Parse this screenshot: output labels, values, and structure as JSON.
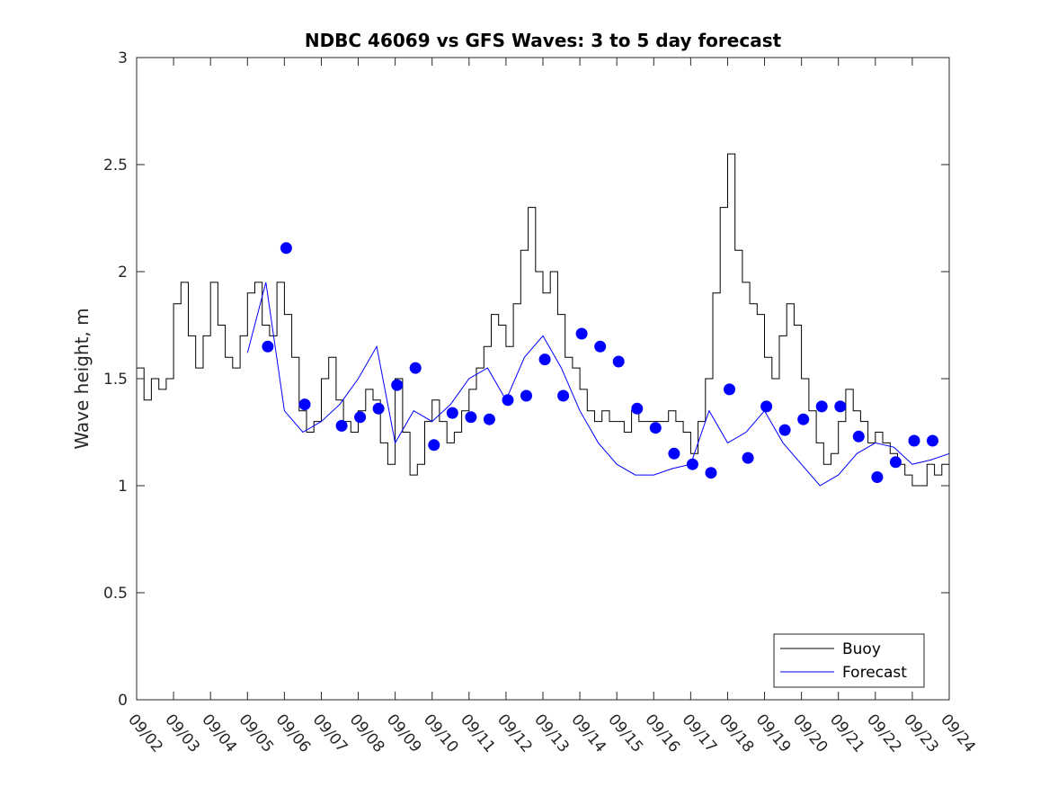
{
  "chart_data": {
    "type": "line",
    "title": "NDBC 46069 vs GFS Waves: 3 to 5 day forecast",
    "xlabel": "",
    "ylabel": "Wave height, m",
    "xlim": [
      0,
      22
    ],
    "ylim": [
      0,
      3
    ],
    "grid": false,
    "legend_position": "bottom-right",
    "x_tick_labels": [
      "09/02",
      "09/03",
      "09/04",
      "09/05",
      "09/06",
      "09/07",
      "09/08",
      "09/09",
      "09/10",
      "09/11",
      "09/12",
      "09/13",
      "09/14",
      "09/15",
      "09/16",
      "09/17",
      "09/18",
      "09/19",
      "09/20",
      "09/21",
      "09/22",
      "09/23",
      "09/24"
    ],
    "y_ticks": [
      0,
      0.5,
      1,
      1.5,
      2,
      2.5,
      3
    ],
    "y_tick_labels": [
      "0",
      "0.5",
      "1",
      "1.5",
      "2",
      "2.5",
      "3"
    ],
    "legend": [
      "Buoy",
      "Forecast"
    ],
    "colors": {
      "buoy": "#000000",
      "forecast": "#0000ff",
      "axis": "#262626"
    },
    "series": [
      {
        "name": "Buoy",
        "x": [
          0.0,
          0.2,
          0.4,
          0.6,
          0.8,
          1.0,
          1.2,
          1.4,
          1.6,
          1.8,
          2.0,
          2.2,
          2.4,
          2.6,
          2.8,
          3.0,
          3.2,
          3.4,
          3.6,
          3.8,
          4.0,
          4.2,
          4.4,
          4.6,
          4.8,
          5.0,
          5.2,
          5.4,
          5.6,
          5.8,
          6.0,
          6.2,
          6.4,
          6.6,
          6.8,
          7.0,
          7.2,
          7.4,
          7.6,
          7.8,
          8.0,
          8.2,
          8.4,
          8.6,
          8.8,
          9.0,
          9.2,
          9.4,
          9.6,
          9.8,
          10.0,
          10.2,
          10.4,
          10.6,
          10.8,
          11.0,
          11.2,
          11.4,
          11.6,
          11.8,
          12.0,
          12.2,
          12.4,
          12.6,
          12.8,
          13.0,
          13.2,
          13.4,
          13.6,
          13.8,
          14.0,
          14.2,
          14.4,
          14.6,
          14.8,
          15.0,
          15.2,
          15.4,
          15.6,
          15.8,
          16.0,
          16.2,
          16.4,
          16.6,
          16.8,
          17.0,
          17.2,
          17.4,
          17.6,
          17.8,
          18.0,
          18.2,
          18.4,
          18.6,
          18.8,
          19.0,
          19.2,
          19.4,
          19.6,
          19.8,
          20.0,
          20.2,
          20.4,
          20.6,
          20.8,
          21.0,
          21.2,
          21.4,
          21.6,
          21.8,
          22.0
        ],
        "values": [
          1.55,
          1.4,
          1.5,
          1.45,
          1.5,
          1.85,
          1.95,
          1.7,
          1.55,
          1.7,
          1.95,
          1.75,
          1.6,
          1.55,
          1.7,
          1.9,
          1.95,
          1.75,
          1.7,
          1.95,
          1.8,
          1.6,
          1.35,
          1.25,
          1.3,
          1.5,
          1.6,
          1.4,
          1.3,
          1.25,
          1.35,
          1.45,
          1.4,
          1.2,
          1.1,
          1.5,
          1.25,
          1.05,
          1.1,
          1.3,
          1.4,
          1.3,
          1.2,
          1.25,
          1.35,
          1.45,
          1.55,
          1.65,
          1.8,
          1.75,
          1.65,
          1.85,
          2.1,
          2.3,
          2.0,
          1.9,
          2.0,
          1.8,
          1.6,
          1.55,
          1.45,
          1.35,
          1.3,
          1.35,
          1.3,
          1.3,
          1.25,
          1.35,
          1.3,
          1.3,
          1.3,
          1.3,
          1.35,
          1.3,
          1.25,
          1.15,
          1.3,
          1.5,
          1.9,
          2.3,
          2.55,
          2.1,
          1.95,
          1.85,
          1.8,
          1.6,
          1.5,
          1.7,
          1.85,
          1.75,
          1.5,
          1.35,
          1.2,
          1.1,
          1.15,
          1.3,
          1.45,
          1.35,
          1.3,
          1.2,
          1.25,
          1.2,
          1.15,
          1.1,
          1.05,
          1.0,
          1.0,
          1.1,
          1.05,
          1.1,
          1.15
        ]
      },
      {
        "name": "Forecast",
        "x": [
          3.0,
          3.5,
          4.0,
          4.5,
          5.0,
          5.5,
          6.0,
          6.5,
          7.0,
          7.5,
          8.0,
          8.5,
          9.0,
          9.5,
          10.0,
          10.5,
          11.0,
          11.5,
          12.0,
          12.5,
          13.0,
          13.5,
          14.0,
          14.5,
          15.0,
          15.5,
          16.0,
          16.5,
          17.0,
          17.5,
          18.0,
          18.5,
          19.0,
          19.5,
          20.0,
          20.5,
          21.0,
          21.5,
          22.0
        ],
        "values": [
          1.62,
          1.95,
          1.35,
          1.25,
          1.3,
          1.38,
          1.5,
          1.65,
          1.2,
          1.35,
          1.3,
          1.38,
          1.5,
          1.55,
          1.4,
          1.6,
          1.7,
          1.55,
          1.35,
          1.2,
          1.1,
          1.05,
          1.05,
          1.08,
          1.1,
          1.35,
          1.2,
          1.25,
          1.35,
          1.2,
          1.1,
          1.0,
          1.05,
          1.15,
          1.2,
          1.18,
          1.1,
          1.12,
          1.15
        ]
      },
      {
        "name": "Forecast markers",
        "x": [
          3.55,
          4.05,
          4.55,
          5.55,
          6.05,
          6.55,
          7.05,
          7.55,
          8.05,
          8.55,
          9.05,
          9.55,
          10.05,
          10.55,
          11.05,
          11.55,
          12.05,
          12.55,
          13.05,
          13.55,
          14.05,
          14.55,
          15.05,
          15.55,
          16.05,
          16.55,
          17.05,
          17.55,
          18.05,
          18.55,
          19.05,
          19.55,
          20.05,
          20.55,
          21.05,
          21.55
        ],
        "values": [
          1.65,
          2.11,
          1.38,
          1.28,
          1.32,
          1.36,
          1.47,
          1.55,
          1.19,
          1.34,
          1.32,
          1.31,
          1.4,
          1.42,
          1.59,
          1.42,
          1.71,
          1.65,
          1.58,
          1.36,
          1.27,
          1.15,
          1.1,
          1.06,
          1.45,
          1.13,
          1.37,
          1.26,
          1.31,
          1.37,
          1.37,
          1.23,
          1.04,
          1.11,
          1.21,
          1.21
        ]
      }
    ]
  }
}
